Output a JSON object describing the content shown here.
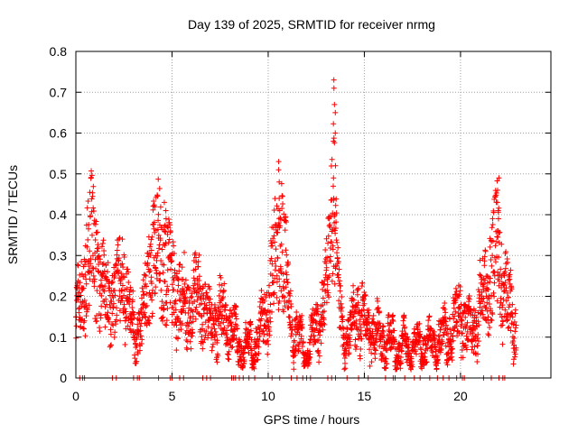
{
  "chart_data": {
    "type": "scatter",
    "title": "Day 139 of 2025, SRMTID for receiver nrmg",
    "xlabel": "GPS time / hours",
    "ylabel": "SRMTID / TECUs",
    "xlim": [
      0,
      24.7
    ],
    "ylim": [
      0,
      0.8
    ],
    "xticks": [
      0,
      5,
      10,
      15,
      20
    ],
    "yticks": [
      0,
      0.1,
      0.2,
      0.3,
      0.4,
      0.5,
      0.6,
      0.7,
      0.8
    ],
    "grid": true,
    "marker": "+",
    "color": "#ff0000",
    "series": [
      {
        "name": "SRMTID",
        "profile_x": [
          0.0,
          0.3,
          0.6,
          0.8,
          1.2,
          1.6,
          2.0,
          2.5,
          2.8,
          3.1,
          3.5,
          3.9,
          4.3,
          4.6,
          4.8,
          5.2,
          5.6,
          6.0,
          6.5,
          7.0,
          7.5,
          8.0,
          8.5,
          9.0,
          9.5,
          10.0,
          10.4,
          10.7,
          11.0,
          11.5,
          12.0,
          12.5,
          12.9,
          13.2,
          13.4,
          13.6,
          13.9,
          14.3,
          14.7,
          15.2,
          15.8,
          16.5,
          17.2,
          17.8,
          18.5,
          19.2,
          19.7,
          20.0,
          20.4,
          20.8,
          21.2,
          21.6,
          21.9,
          22.2,
          22.5,
          22.9
        ],
        "profile_y": [
          0.16,
          0.18,
          0.3,
          0.33,
          0.25,
          0.18,
          0.2,
          0.25,
          0.15,
          0.1,
          0.15,
          0.28,
          0.32,
          0.3,
          0.25,
          0.22,
          0.18,
          0.17,
          0.2,
          0.13,
          0.15,
          0.13,
          0.08,
          0.07,
          0.1,
          0.18,
          0.3,
          0.35,
          0.2,
          0.1,
          0.06,
          0.12,
          0.18,
          0.3,
          0.5,
          0.2,
          0.1,
          0.11,
          0.17,
          0.12,
          0.1,
          0.08,
          0.07,
          0.08,
          0.08,
          0.1,
          0.13,
          0.16,
          0.11,
          0.14,
          0.2,
          0.25,
          0.35,
          0.22,
          0.18,
          0.12
        ],
        "spikes": [
          {
            "x": 13.45,
            "values": [
              0.73,
              0.71,
              0.67,
              0.65,
              0.6,
              0.58,
              0.52,
              0.49,
              0.44,
              0.4,
              0.38
            ]
          },
          {
            "x": 10.55,
            "values": [
              0.53,
              0.51,
              0.48,
              0.44,
              0.41,
              0.38
            ]
          },
          {
            "x": 21.95,
            "values": [
              0.49,
              0.46,
              0.43,
              0.41,
              0.39,
              0.36
            ]
          },
          {
            "x": 4.65,
            "values": [
              0.43,
              0.41,
              0.39,
              0.36
            ]
          }
        ],
        "zero_points_x": [
          0.2,
          0.35,
          0.45,
          1.9,
          2.1,
          3.0,
          3.2,
          3.3,
          4.3,
          4.9,
          5.0,
          5.4,
          5.6,
          6.6,
          6.8,
          7.0,
          8.1,
          8.2,
          8.3,
          8.5,
          8.7,
          9.0,
          9.3,
          10.2,
          10.6,
          11.2,
          11.5,
          11.8,
          12.0,
          12.2,
          13.1,
          13.3,
          13.5,
          14.1,
          14.7,
          15.2,
          16.1,
          16.5,
          16.6,
          17.1,
          17.6,
          17.9,
          18.4,
          18.8,
          19.1,
          19.4,
          19.8,
          20.1,
          20.2,
          21.2,
          21.6,
          22.0,
          22.2,
          22.3
        ]
      }
    ]
  }
}
